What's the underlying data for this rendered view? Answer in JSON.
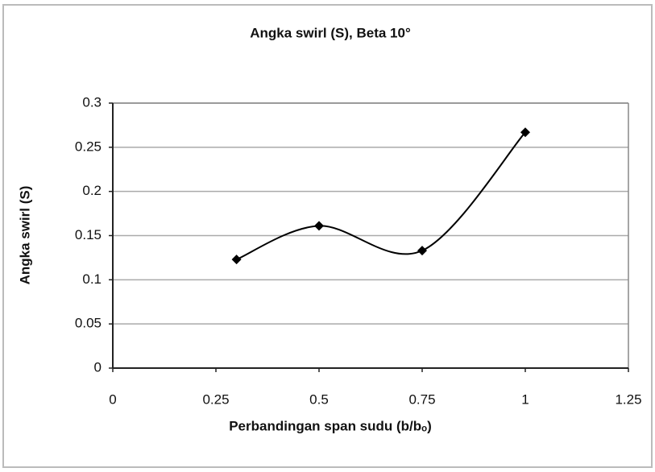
{
  "chart_data": {
    "type": "scatter",
    "title": "Angka swirl (S), Beta 10°",
    "x_label": "Perbandingan span sudu (b/bₒ)",
    "y_label": "Angka swirl (S)",
    "series": [
      {
        "color": "#000000",
        "x": [
          0.3,
          0.5,
          0.75,
          1
        ],
        "values": [
          0.123,
          0.161,
          0.133,
          0.267
        ]
      }
    ],
    "xlim": [
      0,
      1.25
    ],
    "xticks": [
      0,
      0.25,
      0.5,
      0.75,
      1,
      1.25
    ],
    "ylim": [
      0,
      0.3
    ],
    "yticks": [
      0,
      0.05,
      0.1,
      0.15,
      0.2,
      0.25,
      0.3
    ],
    "grid": true,
    "smooth": true,
    "marker": "diamond"
  }
}
